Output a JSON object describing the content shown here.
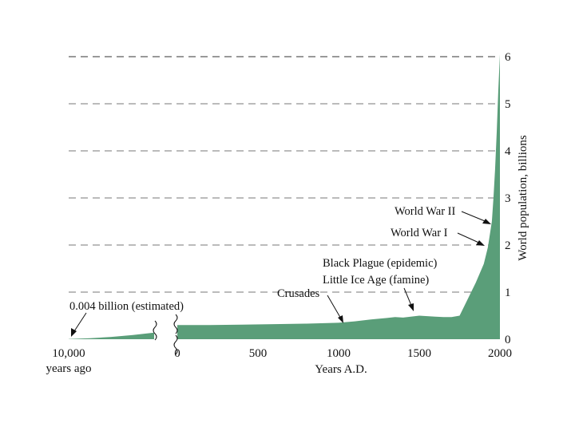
{
  "chart_data": {
    "type": "area",
    "xlabel": "Years A.D.",
    "ylabel": "World population, billions",
    "ylim": [
      0,
      6
    ],
    "y_ticks": [
      "0",
      "1",
      "2",
      "3",
      "4",
      "5",
      "6"
    ],
    "grid": "dashed horizontal lines",
    "x_ticks": {
      "prehistoric": [
        "10,000",
        "years ago"
      ],
      "ad": [
        "0",
        "500",
        "1000",
        "1500",
        "2000"
      ]
    },
    "fill_color": "#5a9e79",
    "prehistoric_segment": {
      "x_years_ago": [
        10000,
        8000,
        6000,
        4000,
        2000
      ],
      "y": [
        0.004,
        0.02,
        0.05,
        0.09,
        0.14
      ]
    },
    "ad_segment": {
      "x": [
        0,
        200,
        400,
        600,
        800,
        1000,
        1100,
        1200,
        1300,
        1350,
        1400,
        1500,
        1600,
        1650,
        1700,
        1750,
        1800,
        1850,
        1900,
        1925,
        1950,
        1960,
        1970,
        1980,
        1990,
        2000
      ],
      "y": [
        0.3,
        0.3,
        0.31,
        0.32,
        0.33,
        0.35,
        0.38,
        0.42,
        0.45,
        0.47,
        0.46,
        0.5,
        0.48,
        0.47,
        0.47,
        0.5,
        0.85,
        1.2,
        1.6,
        1.95,
        2.5,
        3.0,
        3.6,
        4.4,
        5.3,
        6.05
      ]
    },
    "annotations": [
      {
        "id": "world-war-ii",
        "text": "World War II",
        "x": 1942
      },
      {
        "id": "world-war-i",
        "text": "World War I",
        "x": 1916
      },
      {
        "id": "black-plague",
        "text": "Black Plague (epidemic)",
        "x": 1350
      },
      {
        "id": "little-ice-age",
        "text": "Little Ice Age (famine)",
        "x": 1350
      },
      {
        "id": "crusades",
        "text": "Crusades",
        "x": 1000
      },
      {
        "id": "estimated",
        "text": "0.004 billion (estimated)",
        "x_years_ago": 10000
      }
    ]
  }
}
